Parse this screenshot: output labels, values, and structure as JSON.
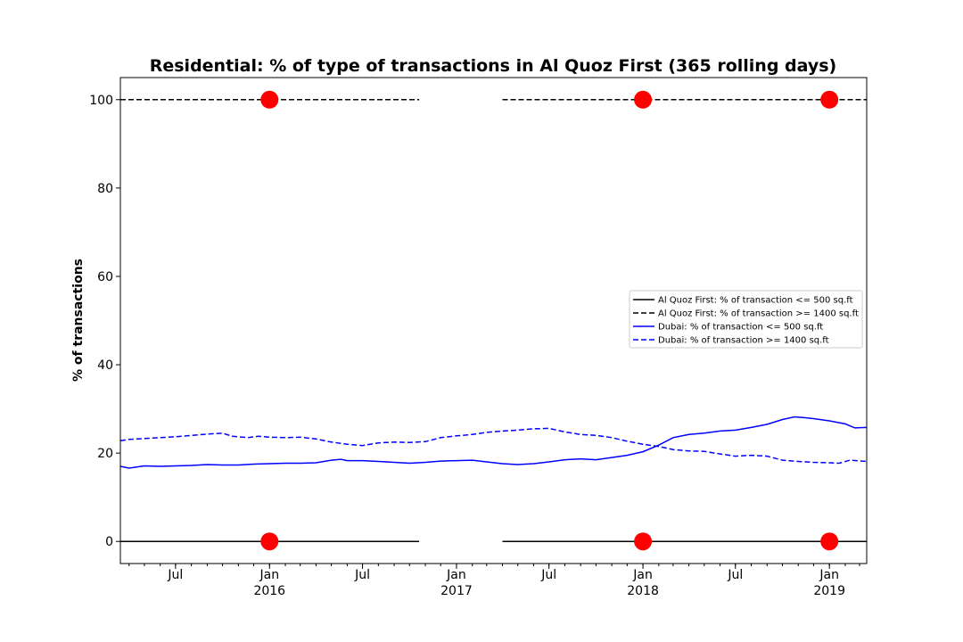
{
  "chart_data": {
    "type": "line",
    "title": "Residential: % of type of transactions in Al Quoz First (365 rolling days)",
    "ylabel": "% of transactions",
    "xlabel": "",
    "xlim": [
      "2015-03-15",
      "2019-03-15"
    ],
    "ylim": [
      -5,
      105
    ],
    "y_ticks": [
      0,
      20,
      40,
      60,
      80,
      100
    ],
    "x_ticks": [
      {
        "date": "2015-07-01",
        "label": "Jul",
        "sub": ""
      },
      {
        "date": "2016-01-01",
        "label": "Jan",
        "sub": "2016"
      },
      {
        "date": "2016-07-01",
        "label": "Jul",
        "sub": ""
      },
      {
        "date": "2017-01-01",
        "label": "Jan",
        "sub": "2017"
      },
      {
        "date": "2017-07-01",
        "label": "Jul",
        "sub": ""
      },
      {
        "date": "2018-01-01",
        "label": "Jan",
        "sub": "2018"
      },
      {
        "date": "2018-07-01",
        "label": "Jul",
        "sub": ""
      },
      {
        "date": "2019-01-01",
        "label": "Jan",
        "sub": "2019"
      }
    ],
    "grid": false,
    "legend_position": "center-right",
    "series": [
      {
        "name": "Al Quoz First: % of transaction <= 500 sq.ft",
        "color": "#000000",
        "dash": false,
        "segments": [
          [
            [
              "2015-03-15",
              0
            ],
            [
              "2016-05-10",
              0
            ],
            [
              "2016-10-20",
              0
            ]
          ],
          [
            [
              "2017-04-01",
              0
            ],
            [
              "2018-01-01",
              0
            ],
            [
              "2019-03-15",
              0
            ]
          ]
        ]
      },
      {
        "name": "Al Quoz First: % of transaction >= 1400 sq.ft",
        "color": "#000000",
        "dash": true,
        "segments": [
          [
            [
              "2015-03-15",
              100
            ],
            [
              "2016-05-10",
              100
            ],
            [
              "2016-10-20",
              100
            ]
          ],
          [
            [
              "2017-04-01",
              100
            ],
            [
              "2018-01-01",
              100
            ],
            [
              "2019-03-15",
              100
            ]
          ]
        ]
      },
      {
        "name": "Dubai: % of transaction <= 500 sq.ft",
        "color": "#0000ff",
        "dash": false,
        "points": [
          [
            "2015-03-15",
            17.0
          ],
          [
            "2015-04-01",
            16.6
          ],
          [
            "2015-05-01",
            17.1
          ],
          [
            "2015-06-01",
            17.0
          ],
          [
            "2015-07-01",
            17.1
          ],
          [
            "2015-08-01",
            17.2
          ],
          [
            "2015-09-01",
            17.4
          ],
          [
            "2015-10-01",
            17.3
          ],
          [
            "2015-11-01",
            17.3
          ],
          [
            "2015-12-01",
            17.5
          ],
          [
            "2016-01-01",
            17.6
          ],
          [
            "2016-02-01",
            17.7
          ],
          [
            "2016-03-01",
            17.7
          ],
          [
            "2016-04-01",
            17.8
          ],
          [
            "2016-05-01",
            18.4
          ],
          [
            "2016-05-20",
            18.6
          ],
          [
            "2016-06-01",
            18.3
          ],
          [
            "2016-07-01",
            18.3
          ],
          [
            "2016-08-01",
            18.1
          ],
          [
            "2016-09-01",
            17.9
          ],
          [
            "2016-10-01",
            17.7
          ],
          [
            "2016-11-01",
            17.9
          ],
          [
            "2016-12-01",
            18.2
          ],
          [
            "2017-01-01",
            18.3
          ],
          [
            "2017-02-01",
            18.4
          ],
          [
            "2017-03-01",
            18.0
          ],
          [
            "2017-04-01",
            17.6
          ],
          [
            "2017-05-01",
            17.4
          ],
          [
            "2017-06-01",
            17.6
          ],
          [
            "2017-07-01",
            18.0
          ],
          [
            "2017-08-01",
            18.5
          ],
          [
            "2017-09-01",
            18.7
          ],
          [
            "2017-10-01",
            18.5
          ],
          [
            "2017-11-01",
            19.0
          ],
          [
            "2017-12-01",
            19.5
          ],
          [
            "2018-01-01",
            20.3
          ],
          [
            "2018-02-01",
            21.8
          ],
          [
            "2018-03-01",
            23.5
          ],
          [
            "2018-04-01",
            24.2
          ],
          [
            "2018-05-01",
            24.5
          ],
          [
            "2018-06-01",
            25.0
          ],
          [
            "2018-07-01",
            25.2
          ],
          [
            "2018-08-01",
            25.8
          ],
          [
            "2018-09-01",
            26.5
          ],
          [
            "2018-10-01",
            27.6
          ],
          [
            "2018-10-25",
            28.2
          ],
          [
            "2018-11-15",
            28.0
          ],
          [
            "2018-12-01",
            27.8
          ],
          [
            "2019-01-01",
            27.3
          ],
          [
            "2019-02-01",
            26.6
          ],
          [
            "2019-02-20",
            25.7
          ],
          [
            "2019-03-15",
            25.8
          ]
        ]
      },
      {
        "name": "Dubai: % of transaction >= 1400 sq.ft",
        "color": "#0000ff",
        "dash": true,
        "points": [
          [
            "2015-03-15",
            22.8
          ],
          [
            "2015-04-01",
            23.1
          ],
          [
            "2015-05-01",
            23.3
          ],
          [
            "2015-06-01",
            23.5
          ],
          [
            "2015-07-01",
            23.7
          ],
          [
            "2015-08-01",
            24.0
          ],
          [
            "2015-09-01",
            24.3
          ],
          [
            "2015-10-01",
            24.5
          ],
          [
            "2015-10-20",
            23.8
          ],
          [
            "2015-11-20",
            23.5
          ],
          [
            "2015-12-10",
            23.8
          ],
          [
            "2016-01-01",
            23.6
          ],
          [
            "2016-02-01",
            23.5
          ],
          [
            "2016-03-01",
            23.6
          ],
          [
            "2016-04-01",
            23.2
          ],
          [
            "2016-05-01",
            22.5
          ],
          [
            "2016-06-01",
            22.0
          ],
          [
            "2016-07-01",
            21.7
          ],
          [
            "2016-08-01",
            22.3
          ],
          [
            "2016-09-01",
            22.5
          ],
          [
            "2016-10-01",
            22.4
          ],
          [
            "2016-11-01",
            22.6
          ],
          [
            "2016-12-01",
            23.5
          ],
          [
            "2017-01-01",
            23.9
          ],
          [
            "2017-02-01",
            24.2
          ],
          [
            "2017-03-01",
            24.7
          ],
          [
            "2017-04-01",
            25.0
          ],
          [
            "2017-05-01",
            25.2
          ],
          [
            "2017-06-01",
            25.5
          ],
          [
            "2017-07-01",
            25.6
          ],
          [
            "2017-08-01",
            24.8
          ],
          [
            "2017-09-01",
            24.2
          ],
          [
            "2017-10-01",
            24.0
          ],
          [
            "2017-11-01",
            23.5
          ],
          [
            "2017-12-01",
            22.7
          ],
          [
            "2018-01-01",
            22.0
          ],
          [
            "2018-02-01",
            21.5
          ],
          [
            "2018-03-01",
            20.8
          ],
          [
            "2018-04-01",
            20.5
          ],
          [
            "2018-05-01",
            20.4
          ],
          [
            "2018-06-01",
            19.8
          ],
          [
            "2018-07-01",
            19.3
          ],
          [
            "2018-08-01",
            19.5
          ],
          [
            "2018-09-01",
            19.3
          ],
          [
            "2018-10-01",
            18.4
          ],
          [
            "2018-11-01",
            18.1
          ],
          [
            "2018-12-01",
            17.9
          ],
          [
            "2019-01-01",
            17.8
          ],
          [
            "2019-01-20",
            17.7
          ],
          [
            "2019-02-10",
            18.4
          ],
          [
            "2019-03-15",
            18.1
          ]
        ]
      }
    ],
    "markers": {
      "color": "#ff0000",
      "points": [
        [
          "2016-01-01",
          100
        ],
        [
          "2018-01-01",
          100
        ],
        [
          "2019-01-01",
          100
        ],
        [
          "2016-01-01",
          0
        ],
        [
          "2018-01-01",
          0
        ],
        [
          "2019-01-01",
          0
        ]
      ]
    }
  }
}
